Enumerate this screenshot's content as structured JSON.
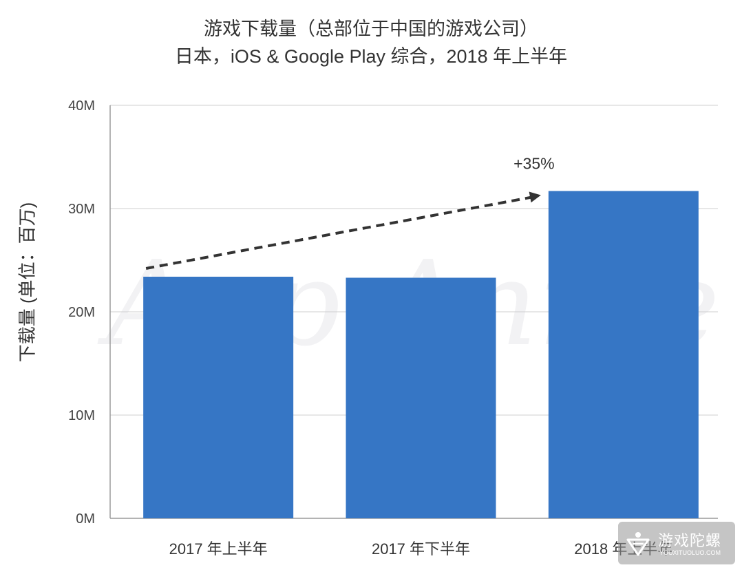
{
  "chart_data": {
    "type": "bar",
    "title": "游戏下载量（总部位于中国的游戏公司）",
    "subtitle": "日本，iOS & Google Play 综合，2018 年上半年",
    "ylabel": "下载量 (单位：百万)",
    "xlabel": "",
    "categories": [
      "2017 年上半年",
      "2017 年下半年",
      "2018 年上半年"
    ],
    "values": [
      23.4,
      23.3,
      31.7
    ],
    "ylim": [
      0,
      40
    ],
    "yticks": [
      0,
      10,
      20,
      30,
      40
    ],
    "ytick_labels": [
      "0M",
      "10M",
      "20M",
      "30M",
      "40M"
    ],
    "grid": true,
    "bar_color": "#3676c5",
    "annotation": {
      "text": "+35%",
      "style": "dashed-arrow",
      "color": "#333333"
    },
    "watermark": "App Annie"
  },
  "badge": {
    "name": "游戏陀螺",
    "url": "YOUXITUOLUO.COM"
  }
}
